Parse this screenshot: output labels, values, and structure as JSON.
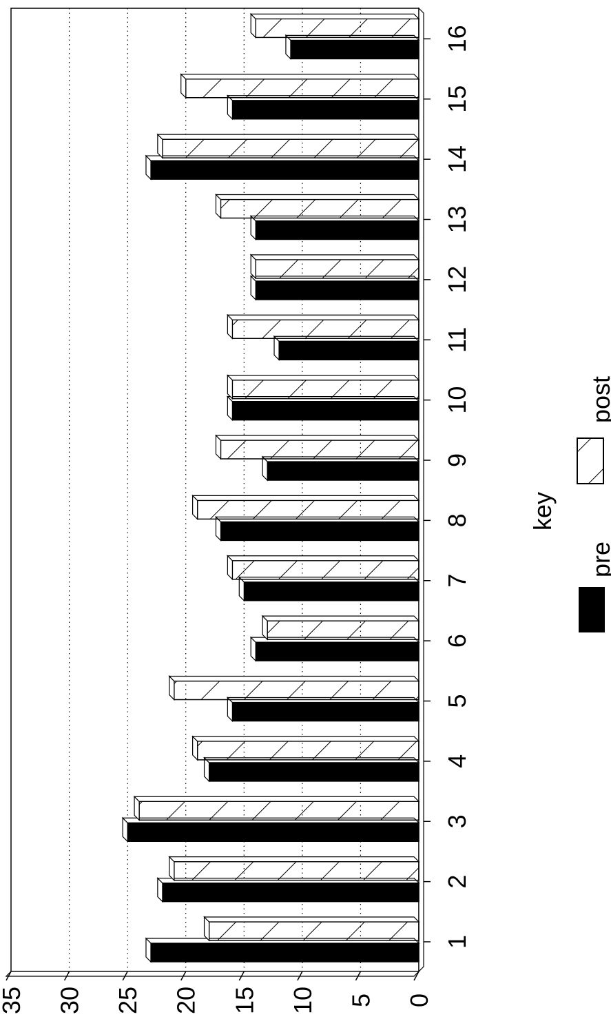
{
  "chart_data": {
    "type": "bar",
    "orientation": "rotated-3d",
    "categories": [
      "1",
      "2",
      "3",
      "4",
      "5",
      "6",
      "7",
      "8",
      "9",
      "10",
      "11",
      "12",
      "13",
      "14",
      "15",
      "16"
    ],
    "series": [
      {
        "name": "pre",
        "values": [
          23,
          22,
          25,
          18,
          16,
          14,
          15,
          17,
          13,
          16,
          12,
          14,
          14,
          23,
          16,
          11
        ],
        "color": "#000000",
        "pattern": "solid"
      },
      {
        "name": "post",
        "values": [
          18,
          21,
          24,
          19,
          21,
          13,
          16,
          19,
          17,
          16,
          16,
          14,
          17,
          22,
          20,
          14
        ],
        "color": "#ffffff",
        "pattern": "hatch"
      }
    ],
    "ylim": [
      0,
      35
    ],
    "yticks": [
      "0",
      "5",
      "10",
      "15",
      "20",
      "25",
      "30",
      "35"
    ],
    "grid": true,
    "legend": {
      "title": "key",
      "placement": "bottom",
      "entries": [
        "pre",
        "post"
      ]
    }
  }
}
